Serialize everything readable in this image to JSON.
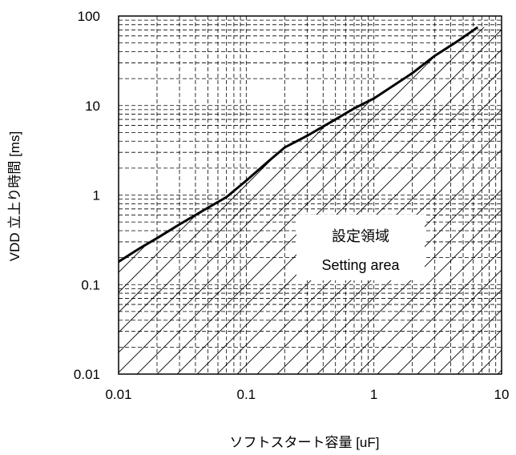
{
  "chart_data": {
    "type": "line",
    "x_scale": "log",
    "y_scale": "log",
    "xlim": [
      0.01,
      10
    ],
    "ylim": [
      0.01,
      100
    ],
    "xlabel": "ソフトスタート容量 [uF]",
    "ylabel": "VDD 立上り時間 [ms]",
    "xticks": [
      "0.01",
      "0.1",
      "1",
      "10"
    ],
    "yticks": [
      "0.01",
      "0.1",
      "1",
      "10",
      "100"
    ],
    "grid": true,
    "grid_style": "dashed, log minor",
    "annotation": [
      "設定領域",
      "Setting area"
    ],
    "hatched_region": "below curve",
    "series": [
      {
        "x": [
          0.01,
          0.015,
          0.02,
          0.03,
          0.05,
          0.07,
          0.1,
          0.15,
          0.2,
          0.3,
          0.5,
          0.7,
          1,
          2,
          3,
          4.5,
          6.5
        ],
        "y": [
          0.18,
          0.26,
          0.33,
          0.47,
          0.72,
          0.95,
          1.45,
          2.4,
          3.4,
          4.6,
          7.0,
          9.3,
          12,
          23,
          36,
          52,
          75
        ],
        "color": "#000000"
      }
    ]
  }
}
